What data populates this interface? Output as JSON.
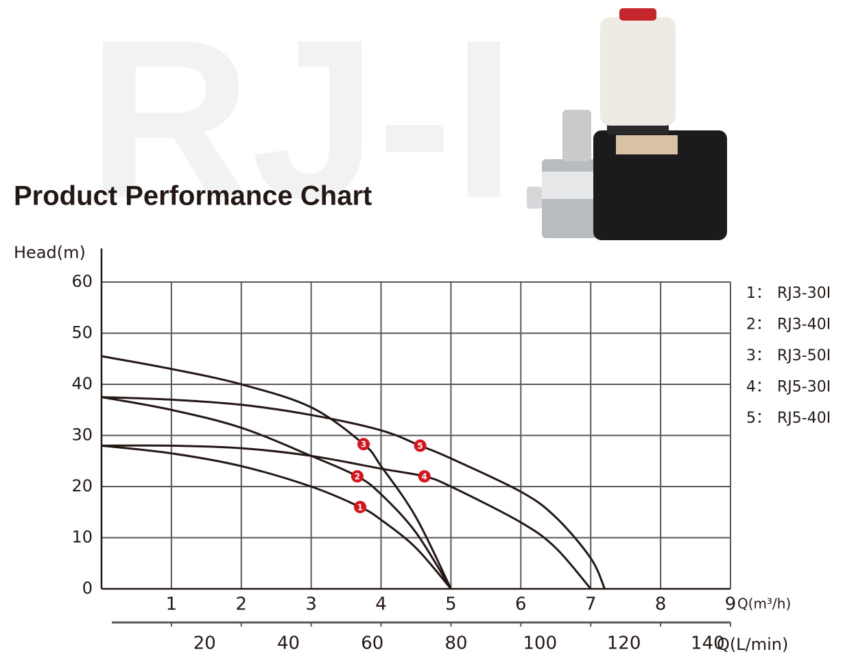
{
  "chart_data": {
    "type": "line",
    "watermark": "RJ-I",
    "title": "Product Performance Chart",
    "y_label": "Head(m)",
    "x_label": "Q(m³/h)",
    "x2_label": "Q(L/min)",
    "xlim": [
      0,
      9
    ],
    "xticks": [
      1,
      2,
      3,
      4,
      5,
      6,
      7,
      8,
      9
    ],
    "x2lim": [
      0,
      150
    ],
    "x2ticks": [
      20,
      40,
      60,
      80,
      100,
      120,
      140
    ],
    "ylim": [
      0,
      60
    ],
    "yticks": [
      0,
      10,
      20,
      30,
      40,
      50,
      60
    ],
    "grid": true,
    "legend_position": "right",
    "color": "#231815",
    "marker_color": "#d7141b",
    "series": [
      {
        "name": "RJ3-30I",
        "legend_label": "1：",
        "x": [
          0,
          1,
          2,
          3,
          3.7,
          4,
          4.5,
          5
        ],
        "values": [
          28,
          26.5,
          24,
          20,
          16,
          13.5,
          8,
          0
        ],
        "marker": {
          "x": 3.7,
          "y": 16,
          "label": "1"
        }
      },
      {
        "name": "RJ3-40I",
        "legend_label": "2：",
        "x": [
          0,
          1,
          2,
          3,
          3.66,
          4,
          4.5,
          5
        ],
        "values": [
          37.5,
          35,
          31.5,
          26,
          22,
          18.5,
          11,
          0
        ],
        "marker": {
          "x": 3.66,
          "y": 22,
          "label": "2"
        }
      },
      {
        "name": "RJ3-50I",
        "legend_label": "3：",
        "x": [
          0,
          1,
          2,
          3,
          3.75,
          4,
          4.5,
          5
        ],
        "values": [
          45.5,
          43,
          40,
          35.5,
          28.3,
          24,
          14,
          0
        ],
        "marker": {
          "x": 3.75,
          "y": 28.3,
          "label": "3"
        }
      },
      {
        "name": "RJ5-30I",
        "legend_label": "4：",
        "x": [
          0,
          1,
          2,
          3,
          4,
          4.62,
          5,
          6,
          6.5,
          7
        ],
        "values": [
          28,
          28,
          27.5,
          26,
          23.5,
          22,
          20,
          13,
          8,
          0
        ],
        "marker": {
          "x": 4.62,
          "y": 22,
          "label": "4"
        }
      },
      {
        "name": "RJ5-40I",
        "legend_label": "5：",
        "x": [
          0,
          1,
          2,
          3,
          4,
          4.56,
          5,
          6,
          6.5,
          7,
          7.2
        ],
        "values": [
          37.5,
          37,
          36,
          34,
          31,
          28,
          25.5,
          19,
          14,
          6,
          0
        ],
        "marker": {
          "x": 4.56,
          "y": 28,
          "label": "5"
        }
      }
    ]
  }
}
